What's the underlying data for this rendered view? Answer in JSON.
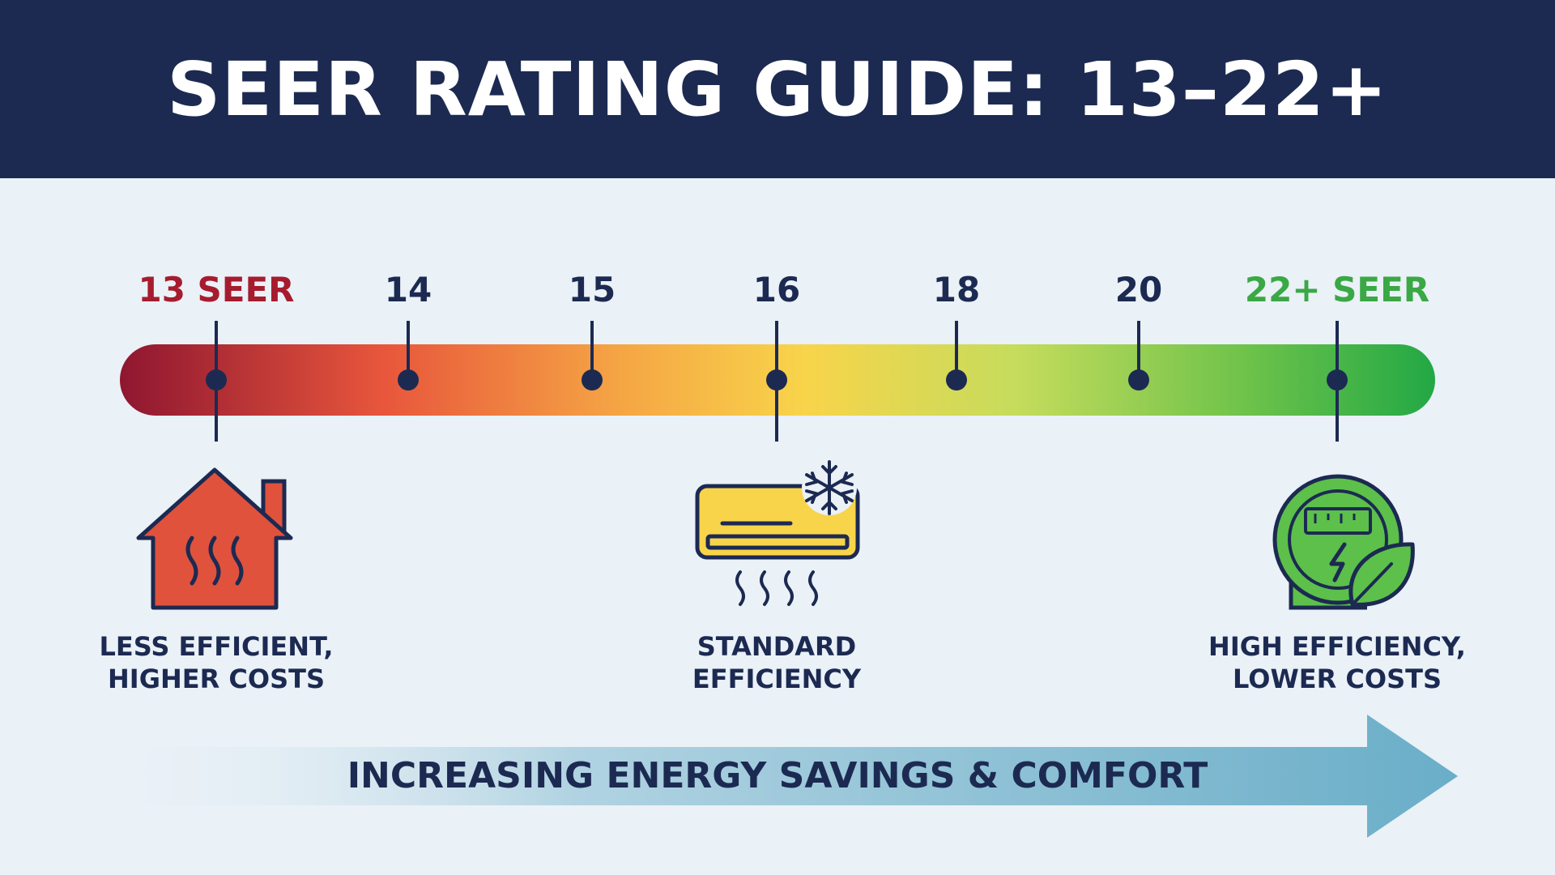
{
  "title": "SEER RATING GUIDE: 13–22+",
  "scale": {
    "ticks": [
      {
        "label": "13 SEER",
        "value": 13,
        "color": "#a61c2e"
      },
      {
        "label": "14",
        "value": 14,
        "color": "#1c2a52"
      },
      {
        "label": "15",
        "value": 15,
        "color": "#1c2a52"
      },
      {
        "label": "16",
        "value": 16,
        "color": "#1c2a52"
      },
      {
        "label": "18",
        "value": 18,
        "color": "#1c2a52"
      },
      {
        "label": "20",
        "value": 20,
        "color": "#1c2a52"
      },
      {
        "label": "22+ SEER",
        "value": 22,
        "color": "#3aa845"
      }
    ],
    "gradient_colors": [
      "#8e1630",
      "#e8563c",
      "#f5a544",
      "#f8d44a",
      "#c6dc5c",
      "#6cc24a",
      "#22a845"
    ]
  },
  "categories": [
    {
      "icon": "house-heat-icon",
      "line1": "LESS EFFICIENT,",
      "line2": "HIGHER COSTS",
      "color": "#e0523c"
    },
    {
      "icon": "air-conditioner-icon",
      "line1": "STANDARD",
      "line2": "EFFICIENCY",
      "color": "#f8d44a"
    },
    {
      "icon": "energy-meter-leaf-icon",
      "line1": "HIGH EFFICIENCY,",
      "line2": "LOWER COSTS",
      "color": "#5cc04a"
    }
  ],
  "arrow": {
    "text": "INCREASING ENERGY SAVINGS & COMFORT",
    "color": "#6aaec8"
  }
}
